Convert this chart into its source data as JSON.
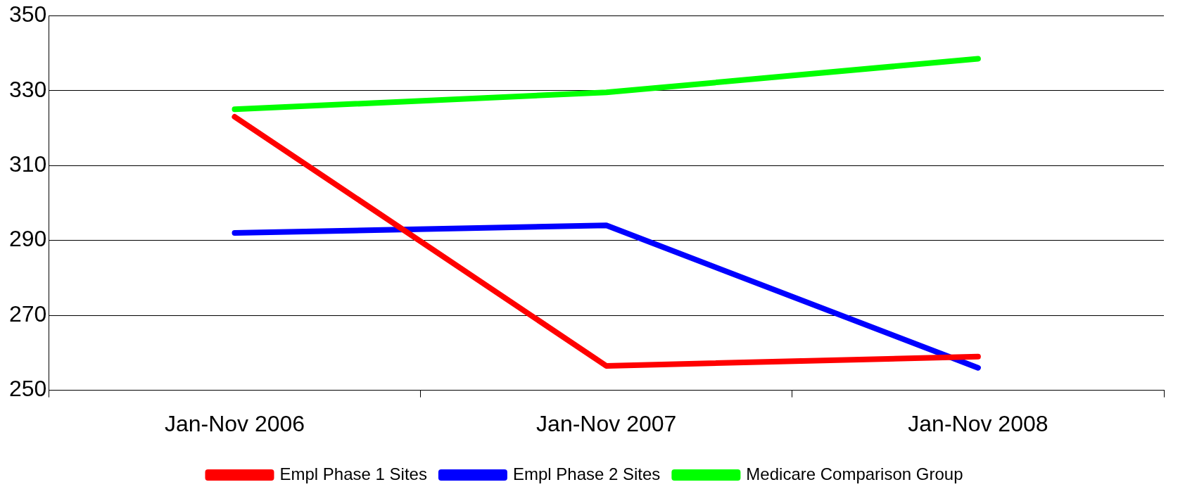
{
  "chart_data": {
    "type": "line",
    "categories": [
      "Jan-Nov 2006",
      "Jan-Nov 2007",
      "Jan-Nov 2008"
    ],
    "series": [
      {
        "name": "Empl Phase 1 Sites",
        "color": "#ff0000",
        "values": [
          323,
          256.5,
          259
        ]
      },
      {
        "name": "Empl Phase 2 Sites",
        "color": "#0000ff",
        "values": [
          292,
          294,
          256
        ]
      },
      {
        "name": "Medicare Comparison Group",
        "color": "#00ff00",
        "values": [
          325,
          329.5,
          338.5
        ]
      }
    ],
    "ylim": [
      250,
      350
    ],
    "yticks": [
      250,
      270,
      290,
      310,
      330,
      350
    ],
    "grid": "y",
    "legend": "bottom",
    "marker": "none",
    "line_style": "solid"
  }
}
